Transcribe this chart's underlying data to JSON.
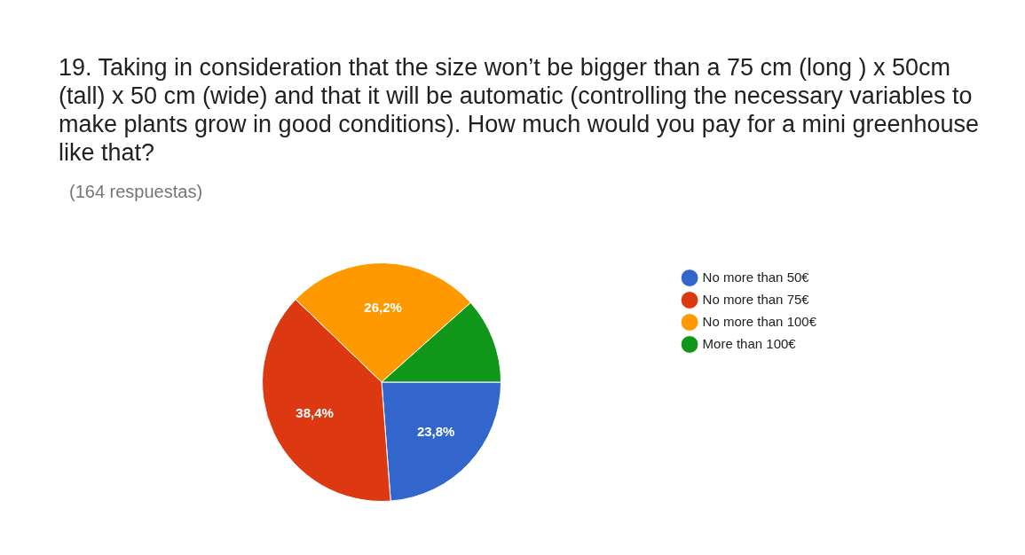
{
  "chart_data": {
    "type": "pie",
    "title": "19. Taking in consideration that the size won’t be bigger than a 75 cm (long ) x 50cm (tall) x 50 cm (wide) and that it will be automatic (controlling the necessary variables to make plants grow in good conditions). How much would you pay for a mini greenhouse like that?",
    "subtitle": "(164 respuestas)",
    "categories": [
      "No more than 50€",
      "No more than 75€",
      "No more than 100€",
      "More than 100€"
    ],
    "values": [
      23.8,
      38.4,
      26.2,
      11.6
    ],
    "colors": [
      "#3366cc",
      "#dc3912",
      "#ff9900",
      "#109618"
    ],
    "value_labels": [
      "23,8%",
      "38,4%",
      "26,2%",
      null
    ],
    "legend": "right"
  }
}
